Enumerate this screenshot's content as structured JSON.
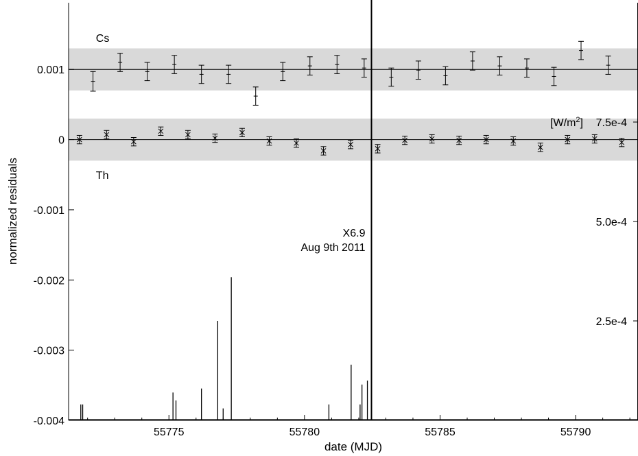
{
  "chart_data": {
    "type": "scatter",
    "xlabel": "date (MJD)",
    "ylabel": "normalized residuals",
    "xlim": [
      55771.3,
      55792.3
    ],
    "ylim": [
      -0.004,
      0.00195
    ],
    "x_ticks": [
      55775,
      55780,
      55785,
      55790
    ],
    "x_tick_labels": [
      "55775",
      "55780",
      "55785",
      "55790"
    ],
    "y_ticks": [
      0.001,
      0,
      -0.001,
      -0.002,
      -0.003,
      -0.004
    ],
    "y_tick_labels": [
      "0.001",
      "0",
      "-0.001",
      "-0.002",
      "-0.003",
      "-0.004"
    ],
    "grid": false,
    "bands": [
      {
        "center": 0.001,
        "half_width": 0.0003
      },
      {
        "center": 0.0,
        "half_width": 0.0003
      }
    ],
    "reference_lines": [
      0.001,
      0.0
    ],
    "series_labels": [
      {
        "text": "Cs",
        "x": 55771.7,
        "y": 0.00145
      },
      {
        "text": "Th",
        "x": 55771.7,
        "y": -0.0005
      }
    ],
    "series": [
      {
        "name": "Cs",
        "marker": "plus",
        "points": [
          {
            "x": 55772.2,
            "y": 0.00083,
            "err": 0.00014
          },
          {
            "x": 55773.2,
            "y": 0.0011,
            "err": 0.00013
          },
          {
            "x": 55774.2,
            "y": 0.00097,
            "err": 0.00013
          },
          {
            "x": 55775.2,
            "y": 0.00107,
            "err": 0.00013
          },
          {
            "x": 55776.2,
            "y": 0.00093,
            "err": 0.00013
          },
          {
            "x": 55777.2,
            "y": 0.00093,
            "err": 0.00013
          },
          {
            "x": 55778.2,
            "y": 0.00062,
            "err": 0.00013
          },
          {
            "x": 55779.2,
            "y": 0.00097,
            "err": 0.00013
          },
          {
            "x": 55780.2,
            "y": 0.00105,
            "err": 0.00013
          },
          {
            "x": 55781.2,
            "y": 0.00107,
            "err": 0.00013
          },
          {
            "x": 55782.2,
            "y": 0.00102,
            "err": 0.00013
          },
          {
            "x": 55783.2,
            "y": 0.00089,
            "err": 0.00013
          },
          {
            "x": 55784.2,
            "y": 0.00099,
            "err": 0.00013
          },
          {
            "x": 55785.2,
            "y": 0.00091,
            "err": 0.00013
          },
          {
            "x": 55786.2,
            "y": 0.00112,
            "err": 0.00013
          },
          {
            "x": 55787.2,
            "y": 0.00105,
            "err": 0.00013
          },
          {
            "x": 55788.2,
            "y": 0.00102,
            "err": 0.00013
          },
          {
            "x": 55789.2,
            "y": 0.0009,
            "err": 0.00013
          },
          {
            "x": 55790.2,
            "y": 0.00127,
            "err": 0.00013
          },
          {
            "x": 55791.2,
            "y": 0.00106,
            "err": 0.00013
          }
        ]
      },
      {
        "name": "Th",
        "marker": "cross",
        "points": [
          {
            "x": 55771.7,
            "y": 0.0,
            "err": 6e-05
          },
          {
            "x": 55772.7,
            "y": 7e-05,
            "err": 6e-05
          },
          {
            "x": 55773.7,
            "y": -3e-05,
            "err": 6e-05
          },
          {
            "x": 55774.7,
            "y": 0.00012,
            "err": 6e-05
          },
          {
            "x": 55775.7,
            "y": 7e-05,
            "err": 6e-05
          },
          {
            "x": 55776.7,
            "y": 2e-05,
            "err": 6e-05
          },
          {
            "x": 55777.7,
            "y": 0.0001,
            "err": 6e-05
          },
          {
            "x": 55778.7,
            "y": -2e-05,
            "err": 6e-05
          },
          {
            "x": 55779.7,
            "y": -5e-05,
            "err": 6e-05
          },
          {
            "x": 55780.7,
            "y": -0.00016,
            "err": 6e-05
          },
          {
            "x": 55781.7,
            "y": -7e-05,
            "err": 6e-05
          },
          {
            "x": 55782.7,
            "y": -0.00013,
            "err": 6e-05
          },
          {
            "x": 55783.7,
            "y": -1e-05,
            "err": 6e-05
          },
          {
            "x": 55784.7,
            "y": 1e-05,
            "err": 6e-05
          },
          {
            "x": 55785.7,
            "y": -1e-05,
            "err": 6e-05
          },
          {
            "x": 55786.7,
            "y": 0.0,
            "err": 6e-05
          },
          {
            "x": 55787.7,
            "y": -2e-05,
            "err": 6e-05
          },
          {
            "x": 55788.7,
            "y": -0.00011,
            "err": 6e-05
          },
          {
            "x": 55789.7,
            "y": 0.0,
            "err": 6e-05
          },
          {
            "x": 55790.7,
            "y": 1e-05,
            "err": 6e-05
          },
          {
            "x": 55791.7,
            "y": -4e-05,
            "err": 6e-05
          }
        ]
      }
    ],
    "flux": {
      "secondary_axis": "right",
      "unit_label": "[W/m",
      "unit_sup": "2",
      "unit_close": "]",
      "ylim": [
        0,
        0.00105
      ],
      "ticks": [
        0.00075,
        0.0005,
        0.00025
      ],
      "tick_labels": [
        "7.5e-4",
        "5.0e-4",
        "2.5e-4"
      ],
      "spikes": [
        {
          "x": 55771.75,
          "y": 4e-05
        },
        {
          "x": 55771.82,
          "y": 4e-05
        },
        {
          "x": 55775.15,
          "y": 7e-05
        },
        {
          "x": 55775.26,
          "y": 5e-05
        },
        {
          "x": 55776.2,
          "y": 8e-05
        },
        {
          "x": 55776.8,
          "y": 0.00025
        },
        {
          "x": 55777.0,
          "y": 3e-05
        },
        {
          "x": 55777.3,
          "y": 0.00036
        },
        {
          "x": 55780.9,
          "y": 4e-05
        },
        {
          "x": 55781.72,
          "y": 0.00014
        },
        {
          "x": 55782.05,
          "y": 4e-05
        },
        {
          "x": 55782.12,
          "y": 9e-05
        },
        {
          "x": 55782.32,
          "y": 0.0001
        },
        {
          "x": 55782.47,
          "y": 0.00275
        }
      ],
      "annotation": {
        "lines": [
          "X6.9",
          "Aug 9th 2011"
        ],
        "x": 55782.47
      }
    }
  }
}
